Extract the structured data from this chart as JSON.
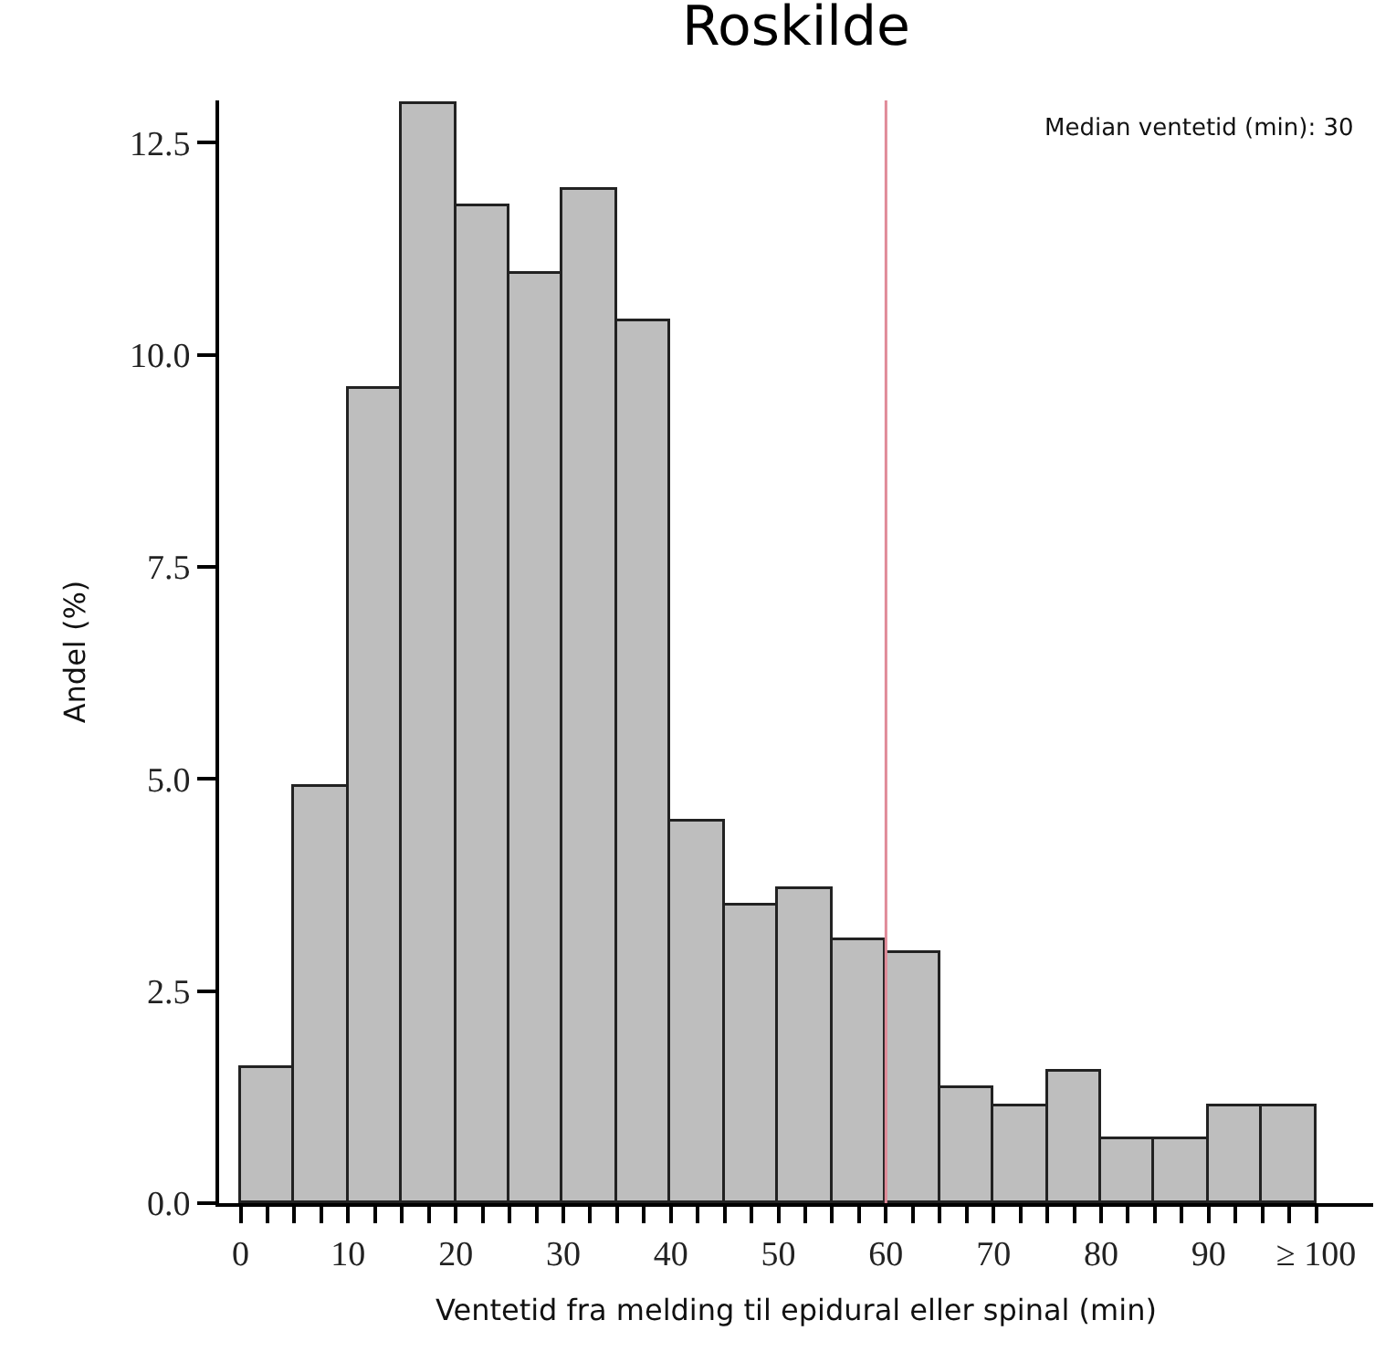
{
  "chart_data": {
    "type": "histogram",
    "title": "Roskilde",
    "xlabel": "Ventetid fra melding til epidural eller spinal (min)",
    "ylabel": "Andel (%)",
    "bins": [
      0,
      5,
      10,
      15,
      20,
      25,
      30,
      35,
      40,
      45,
      50,
      55,
      60,
      65,
      70,
      75,
      80,
      85,
      90,
      95,
      100
    ],
    "values": [
      1.6,
      4.9,
      9.6,
      12.95,
      11.75,
      10.95,
      11.95,
      10.4,
      4.5,
      3.5,
      3.7,
      3.1,
      2.95,
      1.35,
      1.15,
      1.55,
      0.75,
      0.75,
      1.15,
      1.15
    ],
    "color": "#bebebe",
    "xlim": [
      -2,
      105.3
    ],
    "ylim": [
      0,
      13.0
    ],
    "xticks": [
      0,
      {
        "value": 2.5,
        "label": null
      },
      {
        "value": 5,
        "label": null
      },
      {
        "value": 7.5,
        "label": null
      },
      10,
      {
        "value": 12.5,
        "label": null
      },
      {
        "value": 15,
        "label": null
      },
      {
        "value": 17.5,
        "label": null
      },
      20,
      {
        "value": 22.5,
        "label": null
      },
      {
        "value": 25,
        "label": null
      },
      {
        "value": 27.5,
        "label": null
      },
      30,
      {
        "value": 32.5,
        "label": null
      },
      {
        "value": 35,
        "label": null
      },
      {
        "value": 37.5,
        "label": null
      },
      40,
      {
        "value": 42.5,
        "label": null
      },
      {
        "value": 45,
        "label": null
      },
      {
        "value": 47.5,
        "label": null
      },
      50,
      {
        "value": 52.5,
        "label": null
      },
      {
        "value": 55,
        "label": null
      },
      {
        "value": 57.5,
        "label": null
      },
      60,
      {
        "value": 62.5,
        "label": null
      },
      {
        "value": 65,
        "label": null
      },
      {
        "value": 67.5,
        "label": null
      },
      70,
      {
        "value": 72.5,
        "label": null
      },
      {
        "value": 75,
        "label": null
      },
      {
        "value": 77.5,
        "label": null
      },
      80,
      {
        "value": 82.5,
        "label": null
      },
      {
        "value": 85,
        "label": null
      },
      {
        "value": 87.5,
        "label": null
      },
      90,
      {
        "value": 92.5,
        "label": null
      },
      {
        "value": 95,
        "label": null
      },
      {
        "value": 97.5,
        "label": null
      },
      {
        "value": 100,
        "label": "≥ 100"
      }
    ],
    "yticks": [
      {
        "value": 0,
        "label": "0.0"
      },
      {
        "value": 2.5,
        "label": "2.5"
      },
      {
        "value": 5,
        "label": "5.0"
      },
      {
        "value": 7.5,
        "label": "7.5"
      },
      {
        "value": 10,
        "label": "10.0"
      },
      {
        "value": 12.5,
        "label": "12.5"
      }
    ],
    "ref_lines": [
      {
        "axis": "x",
        "value": 60,
        "color": "#e08a98"
      }
    ],
    "annotations": [
      "Median ventetid (min): 30"
    ]
  }
}
